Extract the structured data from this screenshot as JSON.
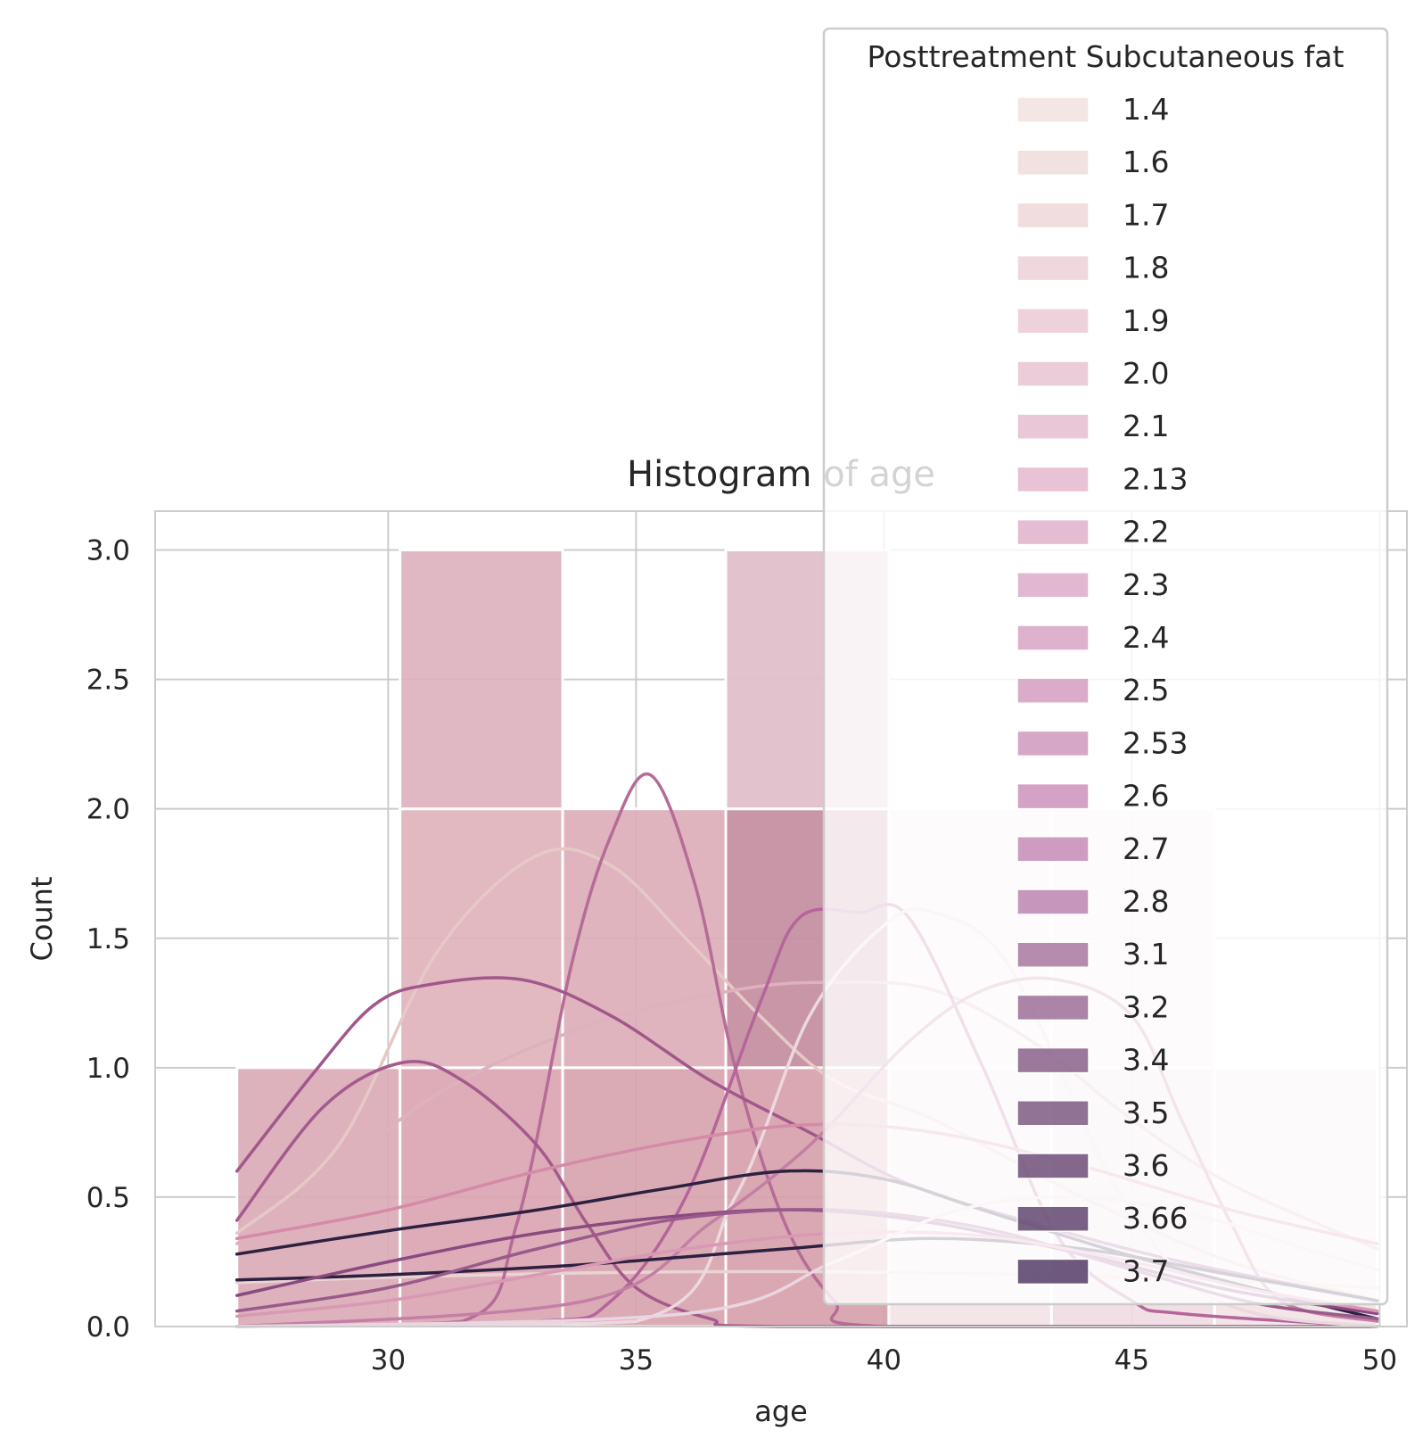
{
  "chart_data": {
    "type": "histogram",
    "title": "Histogram of age",
    "xlabel": "age",
    "ylabel": "Count",
    "xlim": [
      25.3,
      50.55
    ],
    "ylim": [
      0,
      3.15
    ],
    "xticks": [
      30,
      35,
      40,
      45,
      50
    ],
    "yticks": [
      0.0,
      0.5,
      1.0,
      1.5,
      2.0,
      2.5,
      3.0
    ],
    "xtick_labels": [
      "30",
      "35",
      "40",
      "45",
      "50"
    ],
    "ytick_labels": [
      "0.0",
      "0.5",
      "1.0",
      "1.5",
      "2.0",
      "2.5",
      "3.0"
    ],
    "grid": true,
    "legend_position": "top-right",
    "legend": {
      "title": "Posttreatment Subcutaneous fat",
      "entries": [
        "1.4",
        "1.6",
        "1.7",
        "1.8",
        "1.9",
        "2.0",
        "2.1",
        "2.13",
        "2.2",
        "2.3",
        "2.4",
        "2.5",
        "2.53",
        "2.6",
        "2.7",
        "2.8",
        "3.1",
        "3.2",
        "3.4",
        "3.5",
        "3.6",
        "3.66",
        "3.7"
      ],
      "colors": [
        "#f2e2e0",
        "#f0dcdc",
        "#eed6da",
        "#ecd0d8",
        "#eacad5",
        "#e8c4d2",
        "#e5bdcf",
        "#e3b8cd",
        "#e0b2ca",
        "#dcabc7",
        "#d8a4c4",
        "#d49dc0",
        "#d098bd",
        "#cb92ba",
        "#c48bb5",
        "#bd84b0",
        "#a877a0",
        "#9c6f98",
        "#88628c",
        "#7d5a83",
        "#6e4f78",
        "#624670",
        "#553d66"
      ]
    },
    "bins": [
      {
        "x0": 26.95,
        "x1": 30.24,
        "count": 1
      },
      {
        "x0": 30.24,
        "x1": 33.52,
        "count": 3
      },
      {
        "x0": 33.52,
        "x1": 36.81,
        "count": 2
      },
      {
        "x0": 36.81,
        "x1": 40.1,
        "count": 3
      },
      {
        "x0": 40.1,
        "x1": 43.38,
        "count": 2
      },
      {
        "x0": 43.38,
        "x1": 46.67,
        "count": 2
      },
      {
        "x0": 46.67,
        "x1": 49.95,
        "count": 1
      }
    ],
    "stacked_segments": [
      {
        "bin": 0,
        "bottom": 0,
        "top": 1,
        "color": "#d9aab6",
        "opacity": 0.9
      },
      {
        "bin": 1,
        "bottom": 0,
        "top": 1,
        "color": "#d9a3b0",
        "opacity": 0.9
      },
      {
        "bin": 1,
        "bottom": 1,
        "top": 2,
        "color": "#dfb0ba",
        "opacity": 0.9
      },
      {
        "bin": 1,
        "bottom": 2,
        "top": 3,
        "color": "#dbb0bc",
        "opacity": 0.9
      },
      {
        "bin": 2,
        "bottom": 0,
        "top": 1,
        "color": "#d7a2ad",
        "opacity": 0.9
      },
      {
        "bin": 2,
        "bottom": 1,
        "top": 2,
        "color": "#dcacb7",
        "opacity": 0.9
      },
      {
        "bin": 3,
        "bottom": 0,
        "top": 1,
        "color": "#d69eab",
        "opacity": 0.9
      },
      {
        "bin": 3,
        "bottom": 1,
        "top": 2,
        "color": "#c590a2",
        "opacity": 0.95
      },
      {
        "bin": 3,
        "bottom": 2,
        "top": 3,
        "color": "#e0bfca",
        "opacity": 0.95
      },
      {
        "bin": 4,
        "bottom": 0,
        "top": 1,
        "color": "#f2e2e6",
        "opacity": 0.9
      },
      {
        "bin": 4,
        "bottom": 1,
        "top": 2,
        "color": "#f4e6ea",
        "opacity": 0.9
      },
      {
        "bin": 5,
        "bottom": 0,
        "top": 1,
        "color": "#eedde2",
        "opacity": 0.9
      },
      {
        "bin": 5,
        "bottom": 1,
        "top": 2,
        "color": "#f4e6ea",
        "opacity": 0.9
      },
      {
        "bin": 6,
        "bottom": 0,
        "top": 1,
        "color": "#f2e2e6",
        "opacity": 0.9
      }
    ],
    "kde_series": [
      {
        "color": "#e6c9c6",
        "width": 3.5,
        "points": [
          [
            26.95,
            0.36
          ],
          [
            29,
            0.7
          ],
          [
            31,
            1.45
          ],
          [
            33,
            1.82
          ],
          [
            34.5,
            1.78
          ],
          [
            36,
            1.5
          ],
          [
            37.5,
            1.2
          ],
          [
            39,
            0.95
          ],
          [
            41,
            0.8
          ],
          [
            44,
            0.5
          ],
          [
            47,
            0.25
          ],
          [
            49.95,
            0.1
          ]
        ]
      },
      {
        "color": "#e9d4d2",
        "width": 3.5,
        "points": [
          [
            26.95,
            0.17
          ],
          [
            30,
            0.19
          ],
          [
            35,
            0.21
          ],
          [
            40,
            0.21
          ],
          [
            45,
            0.19
          ],
          [
            49.95,
            0.15
          ]
        ]
      },
      {
        "color": "#ddb2bc",
        "width": 3.5,
        "points": [
          [
            26.95,
            0.32
          ],
          [
            29,
            0.6
          ],
          [
            31,
            0.9
          ],
          [
            34,
            1.16
          ],
          [
            37,
            1.3
          ],
          [
            39,
            1.33
          ],
          [
            41,
            1.3
          ],
          [
            43,
            1.1
          ],
          [
            45,
            0.8
          ],
          [
            47,
            0.55
          ],
          [
            49.95,
            0.3
          ]
        ]
      },
      {
        "color": "#b56c96",
        "width": 3.5,
        "points": [
          [
            26.95,
            0.0
          ],
          [
            31.5,
            0.02
          ],
          [
            32.6,
            0.4
          ],
          [
            33.7,
            1.4
          ],
          [
            34.5,
            1.9
          ],
          [
            35.3,
            2.13
          ],
          [
            36.2,
            1.7
          ],
          [
            37,
            1.0
          ],
          [
            38,
            0.4
          ],
          [
            39,
            0.1
          ],
          [
            40,
            0.0
          ],
          [
            49.95,
            0.0
          ]
        ]
      },
      {
        "color": "#a2578b",
        "width": 3.5,
        "points": [
          [
            26.95,
            0.6
          ],
          [
            28.5,
            0.98
          ],
          [
            29.7,
            1.24
          ],
          [
            30.8,
            1.32
          ],
          [
            32.7,
            1.34
          ],
          [
            34.5,
            1.2
          ],
          [
            36.5,
            0.95
          ],
          [
            38.5,
            0.75
          ],
          [
            40.5,
            0.55
          ],
          [
            43,
            0.4
          ],
          [
            46,
            0.25
          ],
          [
            49.95,
            0.1
          ]
        ]
      },
      {
        "color": "#a45a8c",
        "width": 3.5,
        "points": [
          [
            26.95,
            0.41
          ],
          [
            28.7,
            0.85
          ],
          [
            30.3,
            1.02
          ],
          [
            31.5,
            0.95
          ],
          [
            33,
            0.7
          ],
          [
            34,
            0.4
          ],
          [
            35,
            0.15
          ],
          [
            36.5,
            0.03
          ],
          [
            38,
            0.0
          ],
          [
            49.95,
            0.0
          ]
        ]
      },
      {
        "color": "#b5659a",
        "width": 3.5,
        "points": [
          [
            26.95,
            0.0
          ],
          [
            33,
            0.02
          ],
          [
            34.5,
            0.1
          ],
          [
            36,
            0.5
          ],
          [
            37.5,
            1.25
          ],
          [
            38.3,
            1.58
          ],
          [
            39.5,
            1.6
          ],
          [
            40.5,
            1.58
          ],
          [
            42,
            1.0
          ],
          [
            43.5,
            0.35
          ],
          [
            45,
            0.1
          ],
          [
            46,
            0.05
          ],
          [
            49.95,
            0.0
          ]
        ]
      },
      {
        "color": "#ecd8df",
        "width": 3.5,
        "points": [
          [
            26.95,
            0.0
          ],
          [
            35,
            0.02
          ],
          [
            37,
            0.5
          ],
          [
            38.5,
            1.2
          ],
          [
            40,
            1.55
          ],
          [
            41,
            1.6
          ],
          [
            42.5,
            1.4
          ],
          [
            44.5,
            0.6
          ],
          [
            46,
            0.2
          ],
          [
            47.5,
            0.05
          ],
          [
            49.95,
            0.0
          ]
        ]
      },
      {
        "color": "#c37fa4",
        "width": 3.5,
        "points": [
          [
            26.95,
            0.0
          ],
          [
            34,
            0.1
          ],
          [
            36.5,
            0.4
          ],
          [
            38.5,
            0.7
          ],
          [
            40.5,
            1.1
          ],
          [
            42,
            1.3
          ],
          [
            43.5,
            1.34
          ],
          [
            45,
            1.2
          ],
          [
            46,
            0.8
          ],
          [
            47,
            0.4
          ],
          [
            48,
            0.1
          ],
          [
            49.95,
            0.02
          ]
        ]
      },
      {
        "color": "#d58aa8",
        "width": 3.5,
        "points": [
          [
            26.95,
            0.34
          ],
          [
            30,
            0.45
          ],
          [
            33,
            0.6
          ],
          [
            36,
            0.72
          ],
          [
            38.5,
            0.78
          ],
          [
            41,
            0.75
          ],
          [
            44,
            0.62
          ],
          [
            47,
            0.45
          ],
          [
            49.95,
            0.32
          ]
        ]
      },
      {
        "color": "#2d2040",
        "width": 3.5,
        "points": [
          [
            26.95,
            0.28
          ],
          [
            30,
            0.37
          ],
          [
            33,
            0.45
          ],
          [
            35.5,
            0.53
          ],
          [
            38,
            0.6
          ],
          [
            40,
            0.57
          ],
          [
            42,
            0.45
          ],
          [
            44.5,
            0.3
          ],
          [
            47,
            0.17
          ],
          [
            49.95,
            0.03
          ]
        ]
      },
      {
        "color": "#2d2040",
        "width": 3.5,
        "points": [
          [
            26.95,
            0.18
          ],
          [
            30,
            0.2
          ],
          [
            34,
            0.24
          ],
          [
            38,
            0.3
          ],
          [
            41,
            0.34
          ],
          [
            44,
            0.3
          ],
          [
            47,
            0.2
          ],
          [
            49.95,
            0.1
          ]
        ]
      },
      {
        "color": "#8a4a80",
        "width": 3.5,
        "points": [
          [
            26.95,
            0.12
          ],
          [
            30,
            0.25
          ],
          [
            33,
            0.36
          ],
          [
            36,
            0.43
          ],
          [
            38.5,
            0.45
          ],
          [
            41,
            0.4
          ],
          [
            44,
            0.28
          ],
          [
            47,
            0.14
          ],
          [
            49.95,
            0.05
          ]
        ]
      },
      {
        "color": "#9a5a8c",
        "width": 3.5,
        "points": [
          [
            26.95,
            0.06
          ],
          [
            30,
            0.15
          ],
          [
            33,
            0.3
          ],
          [
            36,
            0.42
          ],
          [
            39,
            0.45
          ],
          [
            42,
            0.38
          ],
          [
            45,
            0.22
          ],
          [
            47.5,
            0.09
          ],
          [
            49.95,
            0.03
          ]
        ]
      },
      {
        "color": "#d998b4",
        "width": 3.5,
        "points": [
          [
            26.95,
            0.04
          ],
          [
            30,
            0.1
          ],
          [
            33,
            0.2
          ],
          [
            36,
            0.3
          ],
          [
            39,
            0.36
          ],
          [
            42,
            0.35
          ],
          [
            45,
            0.25
          ],
          [
            47.5,
            0.14
          ],
          [
            49.95,
            0.06
          ]
        ]
      },
      {
        "color": "#ead6e0",
        "width": 3.5,
        "points": [
          [
            26.95,
            0.0
          ],
          [
            36,
            0.05
          ],
          [
            39,
            0.25
          ],
          [
            41.5,
            0.45
          ],
          [
            44,
            0.5
          ],
          [
            46.5,
            0.42
          ],
          [
            48.5,
            0.3
          ],
          [
            49.95,
            0.22
          ]
        ]
      }
    ]
  }
}
